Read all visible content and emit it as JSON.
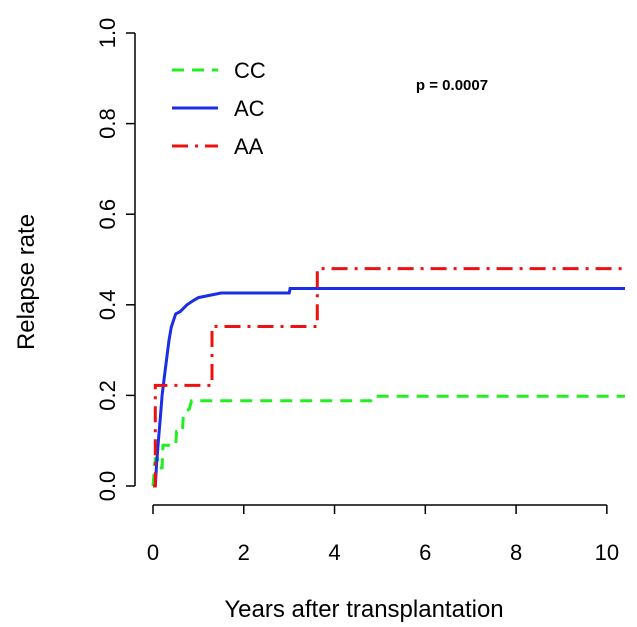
{
  "chart_data": {
    "type": "line",
    "xlabel": "Years after transplantation",
    "ylabel": "Relapse rate",
    "xlim": [
      0,
      10.4
    ],
    "ylim": [
      0,
      1.0
    ],
    "x_ticks": [
      0,
      2,
      4,
      6,
      8,
      10
    ],
    "y_ticks": [
      0.0,
      0.2,
      0.4,
      0.6,
      0.8,
      1.0
    ],
    "x_tick_labels": [
      "0",
      "2",
      "4",
      "6",
      "8",
      "10"
    ],
    "y_tick_labels": [
      "0.0",
      "0.2",
      "0.4",
      "0.6",
      "0.8",
      "1.0"
    ],
    "grid": false,
    "legend_position": "top-left",
    "annotation": "p = 0.0007",
    "series": [
      {
        "name": "CC",
        "color": "#22ee22",
        "style": "dashed",
        "points": [
          [
            0,
            0
          ],
          [
            0.05,
            0.06
          ],
          [
            0.1,
            0.06
          ],
          [
            0.12,
            0.04
          ],
          [
            0.2,
            0.04
          ],
          [
            0.22,
            0.09
          ],
          [
            0.5,
            0.09
          ],
          [
            0.52,
            0.12
          ],
          [
            0.65,
            0.12
          ],
          [
            0.67,
            0.16
          ],
          [
            0.8,
            0.17
          ],
          [
            0.85,
            0.188
          ],
          [
            4.8,
            0.188
          ],
          [
            4.82,
            0.198
          ],
          [
            10.4,
            0.198
          ]
        ]
      },
      {
        "name": "AC",
        "color": "#1a2ee6",
        "style": "solid",
        "points": [
          [
            0.05,
            0
          ],
          [
            0.08,
            0.05
          ],
          [
            0.12,
            0.1
          ],
          [
            0.16,
            0.15
          ],
          [
            0.2,
            0.2
          ],
          [
            0.25,
            0.24
          ],
          [
            0.3,
            0.28
          ],
          [
            0.35,
            0.32
          ],
          [
            0.4,
            0.35
          ],
          [
            0.45,
            0.365
          ],
          [
            0.5,
            0.38
          ],
          [
            0.6,
            0.385
          ],
          [
            0.75,
            0.4
          ],
          [
            0.9,
            0.41
          ],
          [
            1.0,
            0.416
          ],
          [
            1.5,
            0.426
          ],
          [
            3.0,
            0.426
          ],
          [
            3.02,
            0.436
          ],
          [
            10.4,
            0.436
          ]
        ]
      },
      {
        "name": "AA",
        "color": "#ee1111",
        "style": "dashdot",
        "points": [
          [
            0,
            0
          ],
          [
            0.05,
            0
          ],
          [
            0.05,
            0.222
          ],
          [
            1.3,
            0.222
          ],
          [
            1.3,
            0.352
          ],
          [
            3.62,
            0.352
          ],
          [
            3.62,
            0.48
          ],
          [
            10.4,
            0.48
          ]
        ]
      }
    ]
  }
}
